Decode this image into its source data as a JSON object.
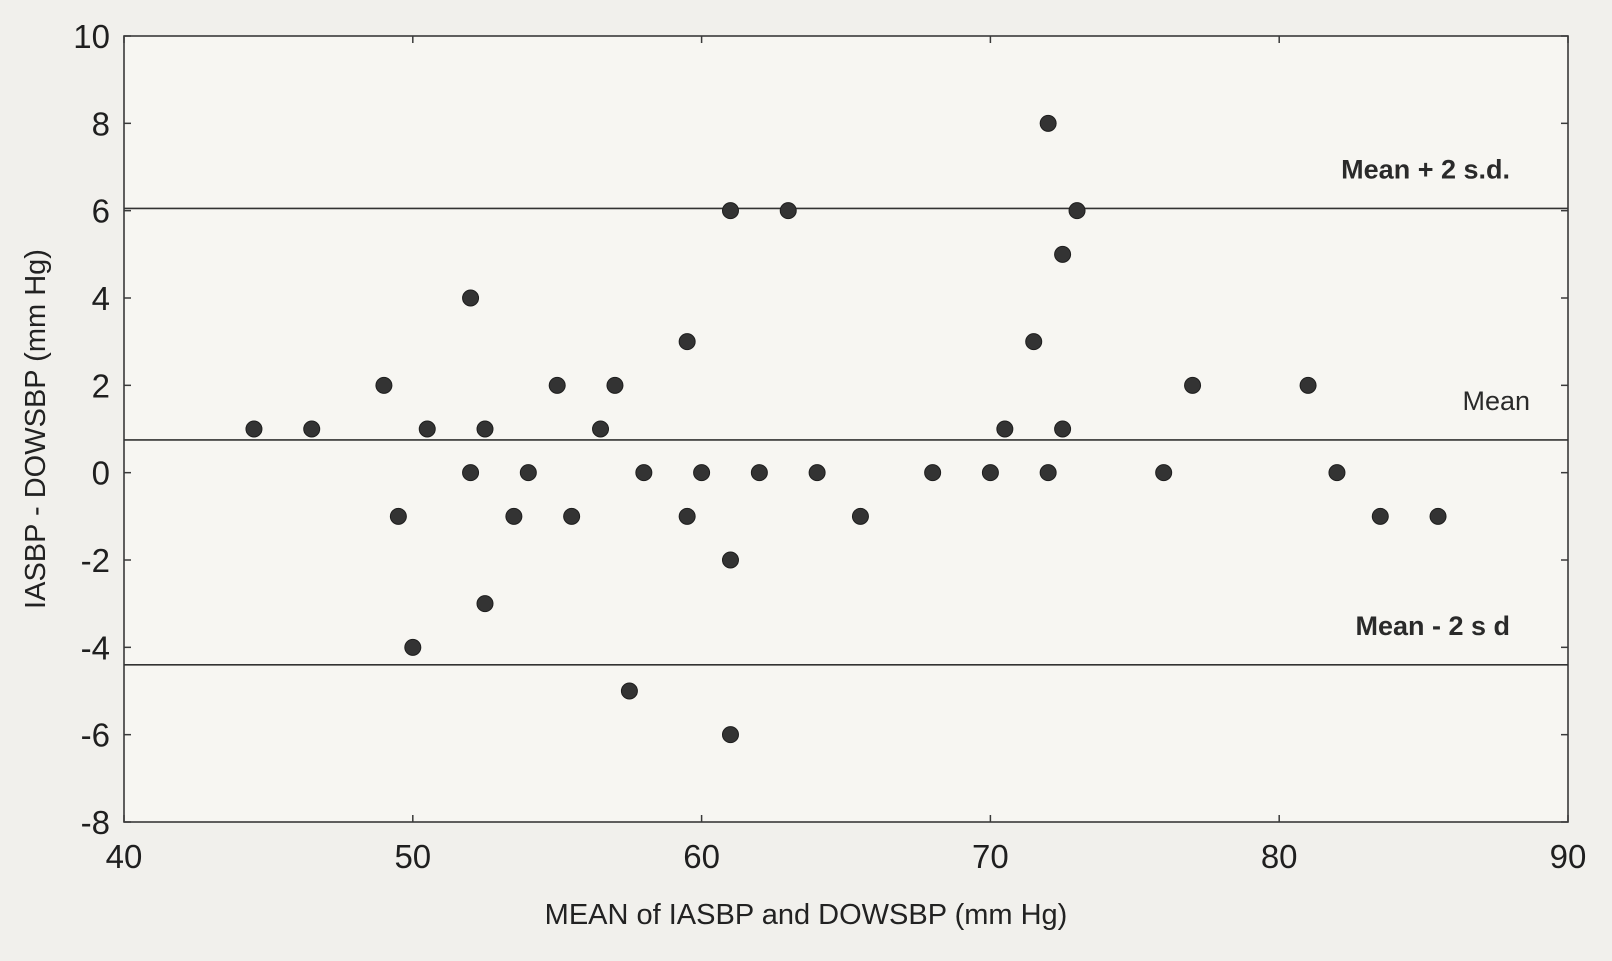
{
  "chart_data": {
    "type": "scatter",
    "xlabel": "MEAN of IASBP and DOWSBP (mm Hg)",
    "ylabel": "IASBP - DOWSBP (mm Hg)",
    "xlim": [
      40,
      90
    ],
    "ylim": [
      -8,
      10
    ],
    "x_ticks": [
      40,
      50,
      60,
      70,
      80,
      90
    ],
    "y_ticks": [
      10,
      8,
      6,
      4,
      2,
      0,
      -2,
      -4,
      -6,
      -8
    ],
    "grid": false,
    "marker_color": "#333333",
    "points": [
      {
        "x": 44.5,
        "y": 1
      },
      {
        "x": 46.5,
        "y": 1
      },
      {
        "x": 49,
        "y": 2
      },
      {
        "x": 49.5,
        "y": -1
      },
      {
        "x": 50,
        "y": -4
      },
      {
        "x": 50.5,
        "y": 1
      },
      {
        "x": 52,
        "y": 4
      },
      {
        "x": 52,
        "y": 0
      },
      {
        "x": 52.5,
        "y": 1
      },
      {
        "x": 52.5,
        "y": -3
      },
      {
        "x": 53.5,
        "y": -1
      },
      {
        "x": 54,
        "y": 0
      },
      {
        "x": 55,
        "y": 2
      },
      {
        "x": 55.5,
        "y": -1
      },
      {
        "x": 56.5,
        "y": 1
      },
      {
        "x": 57,
        "y": 2
      },
      {
        "x": 57.5,
        "y": -5
      },
      {
        "x": 58,
        "y": 0
      },
      {
        "x": 59.5,
        "y": 3
      },
      {
        "x": 59.5,
        "y": -1
      },
      {
        "x": 60,
        "y": 0
      },
      {
        "x": 61,
        "y": 6
      },
      {
        "x": 61,
        "y": -2
      },
      {
        "x": 61,
        "y": -6
      },
      {
        "x": 62,
        "y": 0
      },
      {
        "x": 63,
        "y": 6
      },
      {
        "x": 64,
        "y": 0
      },
      {
        "x": 65.5,
        "y": -1
      },
      {
        "x": 68,
        "y": 0
      },
      {
        "x": 70,
        "y": 0
      },
      {
        "x": 70.5,
        "y": 1
      },
      {
        "x": 71.5,
        "y": 3
      },
      {
        "x": 72,
        "y": 8
      },
      {
        "x": 72,
        "y": 0
      },
      {
        "x": 72.5,
        "y": 5
      },
      {
        "x": 72.5,
        "y": 1
      },
      {
        "x": 73,
        "y": 6
      },
      {
        "x": 76,
        "y": 0
      },
      {
        "x": 77,
        "y": 2
      },
      {
        "x": 81,
        "y": 2
      },
      {
        "x": 82,
        "y": 0
      },
      {
        "x": 83.5,
        "y": -1
      },
      {
        "x": 85.5,
        "y": -1
      }
    ],
    "reference_lines": [
      {
        "name": "upper_limit",
        "y": 6.05,
        "label": "Mean + 2 s.d."
      },
      {
        "name": "mean",
        "y": 0.75,
        "label": "Mean"
      },
      {
        "name": "lower_limit",
        "y": -4.4,
        "label": "Mean - 2 s d"
      }
    ]
  }
}
